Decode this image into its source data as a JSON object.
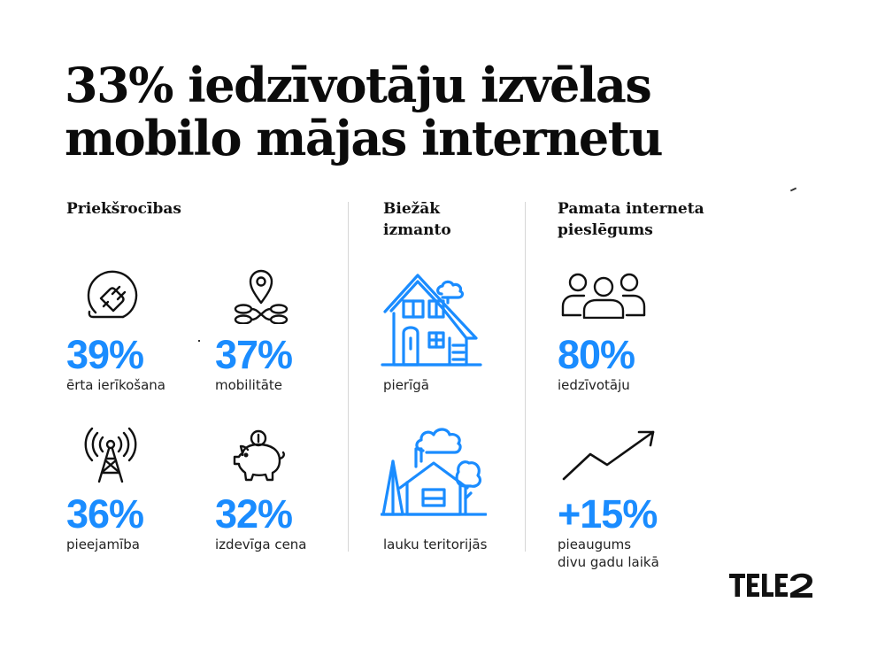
{
  "title": {
    "line1": "33% iedzīvotāju izvēlas",
    "line2": "mobilo mājas internetu"
  },
  "columns": {
    "advantages": {
      "heading": "Priekšrocības",
      "items": [
        {
          "value": "39%",
          "label": "ērta ierīkošana",
          "icon": "plug-icon"
        },
        {
          "value": "37%",
          "label": "mobilitāte",
          "icon": "location-pin-icon"
        },
        {
          "value": "36%",
          "label": "pieejamība",
          "icon": "antenna-tower-icon"
        },
        {
          "value": "32%",
          "label": "izdevīga cena",
          "icon": "piggy-bank-icon"
        }
      ]
    },
    "most_used": {
      "heading_line1": "Biežāk",
      "heading_line2": "izmanto",
      "items": [
        {
          "label": "pierīgā",
          "icon": "house-icon"
        },
        {
          "label": "lauku teritorijās",
          "icon": "country-house-icon"
        }
      ]
    },
    "basic_connection": {
      "heading_line1": "Pamata interneta",
      "heading_line2": "pieslēgums",
      "items": [
        {
          "value": "80%",
          "label": "iedzīvotāju",
          "icon": "people-icon"
        },
        {
          "value": "+15%",
          "label_line1": "pieaugums",
          "label_line2": "divu gadu laikā",
          "icon": "trend-up-icon"
        }
      ]
    }
  },
  "logo": {
    "text": "TELE2"
  },
  "colors": {
    "accent": "#1a8cff",
    "text": "#111111",
    "divider": "#d6d6d6"
  }
}
